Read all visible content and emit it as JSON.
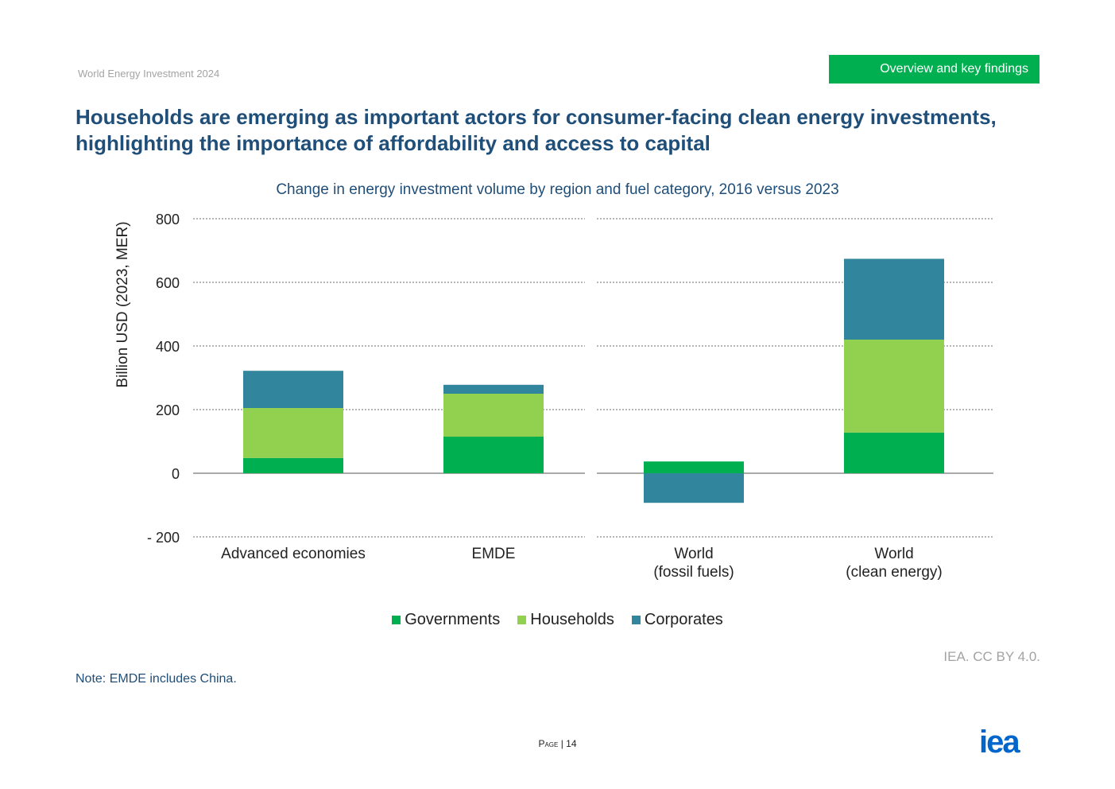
{
  "header": {
    "doc_name": "World Energy Investment 2024",
    "section_tag": "Overview and key findings",
    "title_line1": "Households are emerging as important actors for consumer-facing clean energy investments,",
    "title_line2": "highlighting the importance of affordability and access to capital"
  },
  "footer": {
    "source": "IEA. CC BY 4.0.",
    "note": "Note: EMDE includes China.",
    "page_label": "Page",
    "page_sep": "|",
    "page_number": "14",
    "logo_text": "iea"
  },
  "colors": {
    "governments": "#00b050",
    "households": "#92d050",
    "corporates": "#31859c",
    "title": "#1f4e79",
    "tag_background": "#00b050"
  },
  "chart_data": {
    "type": "bar",
    "stacked": true,
    "title": "Change in energy investment volume by region and fuel category, 2016 versus 2023",
    "ylabel": "Billion USD (2023, MER)",
    "ylim": [
      -200,
      800
    ],
    "yticks": [
      800,
      600,
      400,
      200,
      0,
      -200
    ],
    "ytick_labels": [
      "800",
      "600",
      "400",
      "200",
      "0",
      "- 200"
    ],
    "grid": true,
    "legend_position": "bottom",
    "categories": [
      [
        "Advanced economies"
      ],
      [
        "EMDE"
      ],
      [
        "World",
        "(fossil fuels)"
      ],
      [
        "World",
        "(clean energy)"
      ]
    ],
    "series": [
      {
        "name": "Governments",
        "color": "#00b050",
        "values": [
          48,
          115,
          37,
          128
        ]
      },
      {
        "name": "Households",
        "color": "#92d050",
        "values": [
          157,
          135,
          0,
          292
        ]
      },
      {
        "name": "Corporates",
        "color": "#31859c",
        "values": [
          117,
          28,
          -93,
          254
        ]
      }
    ]
  }
}
